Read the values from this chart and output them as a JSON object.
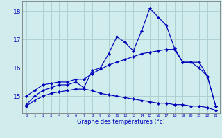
{
  "xlabel": "Graphe des températures (°c)",
  "background_color": "#d0ecec",
  "grid_color": "#a8cccc",
  "line_color": "#0000bb",
  "hours": [
    0,
    1,
    2,
    3,
    4,
    5,
    6,
    7,
    8,
    9,
    10,
    11,
    12,
    13,
    14,
    15,
    16,
    17,
    18,
    19,
    20,
    21,
    22,
    23
  ],
  "temp_actual": [
    14.7,
    15.0,
    15.2,
    15.3,
    15.4,
    15.4,
    15.5,
    15.3,
    15.9,
    16.0,
    16.5,
    17.1,
    16.9,
    16.6,
    17.3,
    18.1,
    17.8,
    17.5,
    16.7,
    16.2,
    16.2,
    16.0,
    15.7,
    14.65
  ],
  "temp_max": [
    15.0,
    15.2,
    15.4,
    15.45,
    15.5,
    15.5,
    15.6,
    15.6,
    15.8,
    15.95,
    16.1,
    16.2,
    16.3,
    16.4,
    16.5,
    16.55,
    16.6,
    16.65,
    16.65,
    16.2,
    16.2,
    16.2,
    15.7,
    14.65
  ],
  "temp_min": [
    14.65,
    14.85,
    15.0,
    15.1,
    15.15,
    15.2,
    15.25,
    15.25,
    15.2,
    15.1,
    15.05,
    15.0,
    14.95,
    14.9,
    14.85,
    14.8,
    14.75,
    14.75,
    14.7,
    14.7,
    14.65,
    14.65,
    14.6,
    14.5
  ],
  "ylim": [
    14.4,
    18.35
  ],
  "yticks": [
    15,
    16,
    17,
    18
  ],
  "xticks": [
    0,
    1,
    2,
    3,
    4,
    5,
    6,
    7,
    8,
    9,
    10,
    11,
    12,
    13,
    14,
    15,
    16,
    17,
    18,
    19,
    20,
    21,
    22,
    23
  ]
}
